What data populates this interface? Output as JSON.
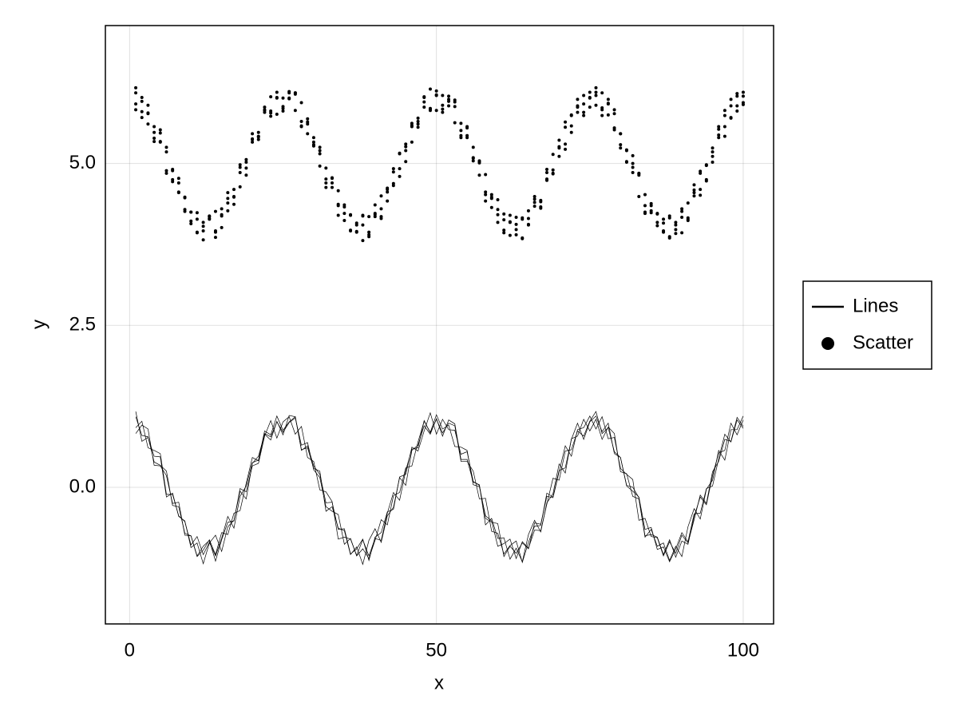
{
  "chart_data": {
    "type": "line",
    "xlabel": "x",
    "ylabel": "y",
    "xlim": [
      -3.95,
      104.95
    ],
    "ylim": [
      -2.11,
      7.13
    ],
    "xticks": [
      0,
      50,
      100
    ],
    "yticks": [
      {
        "value": 0,
        "label": "0.0"
      },
      {
        "value": 2.5,
        "label": "2.5"
      },
      {
        "value": 5,
        "label": "5.0"
      }
    ],
    "grid": true,
    "legend": "right",
    "x": [
      1,
      2,
      3,
      4,
      5,
      6,
      7,
      8,
      9,
      10,
      11,
      12,
      13,
      14,
      15,
      16,
      17,
      18,
      19,
      20,
      21,
      22,
      23,
      24,
      25,
      26,
      27,
      28,
      29,
      30,
      31,
      32,
      33,
      34,
      35,
      36,
      37,
      38,
      39,
      40,
      41,
      42,
      43,
      44,
      45,
      46,
      47,
      48,
      49,
      50,
      51,
      52,
      53,
      54,
      55,
      56,
      57,
      58,
      59,
      60,
      61,
      62,
      63,
      64,
      65,
      66,
      67,
      68,
      69,
      70,
      71,
      72,
      73,
      74,
      75,
      76,
      77,
      78,
      79,
      80,
      81,
      82,
      83,
      84,
      85,
      86,
      87,
      88,
      89,
      90,
      91,
      92,
      93,
      94,
      95,
      96,
      97,
      98,
      99,
      100
    ],
    "series": [
      {
        "name": "Lines",
        "type": "line",
        "color": "#000000",
        "values": [
          [
            1.09,
            0.8,
            0.78,
            0.39,
            0.34,
            0.25,
            -0.28,
            -0.3,
            -0.71,
            -0.75,
            -1.07,
            -0.97,
            -0.81,
            -1.04,
            -0.7,
            -0.73,
            -0.4,
            -0.36,
            0.06,
            0.46,
            0.41,
            0.83,
            0.78,
            1.01,
            0.85,
            1.0,
            1.07,
            0.65,
            0.69,
            0.27,
            0.15,
            -0.3,
            -0.37,
            -0.42,
            -0.88,
            -0.79,
            -1.06,
            -0.95,
            -1.1,
            -0.82,
            -0.5,
            -0.58,
            -0.13,
            -0.08,
            0.3,
            0.33,
            0.7,
            1.02,
            0.85,
            1.12,
            0.9,
            0.96,
            0.63,
            0.62,
            0.57,
            0.04,
            0.01,
            -0.44,
            -0.52,
            -0.91,
            -0.87,
            -0.8,
            -1.1,
            -0.84,
            -0.94,
            -0.66,
            -0.67,
            -0.26,
            0.14,
            0.11,
            0.56,
            0.58,
            0.87,
            0.79,
            1.02,
            1.17,
            0.83,
            0.92,
            0.55,
            0.46,
            0.02,
            -0.06,
            -0.15,
            -0.65,
            -0.62,
            -0.96,
            -0.92,
            -1.15,
            -0.95,
            -0.7,
            -0.84,
            -0.41,
            -0.4,
            -0.02,
            0.02,
            0.44,
            0.82,
            0.7,
            1.04,
            0.91
          ],
          [
            0.92,
            1.02,
            0.61,
            0.57,
            0.52,
            -0.11,
            -0.11,
            -0.44,
            -0.53,
            -0.89,
            -0.76,
            -1.04,
            -0.85,
            -1.06,
            -0.79,
            -0.45,
            -0.63,
            -0.14,
            0.02,
            0.38,
            0.42,
            0.87,
            0.81,
            1.1,
            0.88,
            1.01,
            1.09,
            0.57,
            0.64,
            0.33,
            0.2,
            -0.24,
            -0.23,
            -0.65,
            -0.64,
            -1.03,
            -0.95,
            -0.8,
            -1.13,
            -0.77,
            -0.7,
            -0.38,
            -0.34,
            0.16,
            0.2,
            0.62,
            0.56,
            0.87,
            1.15,
            0.82,
            1.05,
            0.89,
            0.88,
            0.51,
            0.55,
            0.09,
            0.03,
            -0.48,
            -0.54,
            -0.56,
            -1.07,
            -0.91,
            -1.02,
            -0.86,
            -0.95,
            -0.55,
            -0.57,
            -0.14,
            -0.16,
            0.24,
            0.64,
            0.48,
            0.89,
            0.92,
            1.1,
            0.9,
            1.09,
            0.75,
            0.77,
            0.29,
            0.2,
            0.12,
            -0.51,
            -0.48,
            -0.76,
            -0.78,
            -1.06,
            -0.84,
            -1.02,
            -0.74,
            -0.86,
            -0.5,
            -0.12,
            -0.25,
            0.24,
            0.4,
            0.74,
            0.71,
            1.08,
            0.94
          ],
          [
            1.17,
            0.71,
            0.77,
            0.48,
            0.47,
            -0.15,
            -0.09,
            -0.45,
            -0.52,
            -0.93,
            -0.86,
            -1.18,
            -0.86,
            -0.74,
            -0.99,
            -0.61,
            -0.51,
            -0.06,
            -0.18,
            0.37,
            0.48,
            0.82,
            0.73,
            1.02,
            0.81,
            1.11,
            1.09,
            0.58,
            0.61,
            0.29,
            0.25,
            -0.37,
            -0.3,
            -0.63,
            -0.67,
            -1.04,
            -0.92,
            -1.19,
            -0.82,
            -0.64,
            -0.85,
            -0.44,
            -0.31,
            0.15,
            0.03,
            0.57,
            0.65,
            0.95,
            0.82,
            1.06,
            0.79,
            1.04,
            0.98,
            0.43,
            0.43,
            0.08,
            0.04,
            -0.58,
            -0.48,
            -0.79,
            -0.78,
            -1.11,
            -0.94,
            -1.15,
            -0.73,
            -0.51,
            -0.69,
            -0.24,
            -0.1,
            0.36,
            0.22,
            0.75,
            0.79,
            1.05,
            0.87,
            1.05,
            0.74,
            0.93,
            0.83,
            0.24,
            0.21,
            -0.14,
            -0.18,
            -0.77,
            -0.65,
            -0.91,
            -0.86,
            -1.13,
            -0.91,
            -1.07,
            -0.61,
            -0.33,
            -0.49,
            -0.03,
            0.11,
            0.57,
            0.42,
            0.89,
            0.89,
            1.1
          ],
          [
            0.83,
            0.96,
            0.9,
            0.34,
            0.33,
            0.18,
            -0.25,
            -0.23,
            -0.74,
            -0.75,
            -1.06,
            -0.91,
            -0.82,
            -1.14,
            -0.81,
            -0.54,
            -0.52,
            -0.02,
            -0.07,
            0.33,
            0.37,
            0.79,
            1.03,
            0.76,
            1.01,
            1.09,
            0.82,
            0.94,
            0.46,
            0.4,
            -0.04,
            -0.07,
            -0.22,
            -0.8,
            -0.77,
            -0.8,
            -1.05,
            -0.81,
            -1.06,
            -0.79,
            -0.82,
            -0.4,
            -0.08,
            -0.2,
            0.26,
            0.59,
            0.61,
            1.03,
            0.84,
            1.05,
            0.84,
            0.99,
            0.95,
            0.4,
            0.4,
            0.25,
            -0.18,
            -0.17,
            -0.68,
            -0.71,
            -1.03,
            -0.9,
            -0.83,
            -1.16,
            -0.85,
            -0.6,
            -0.59,
            -0.09,
            -0.15,
            0.26,
            0.3,
            0.74,
            0.99,
            0.74,
            1.01,
            1.1,
            0.86,
            0.99,
            0.52,
            0.46,
            0.03,
            0.0,
            -0.16,
            -0.75,
            -0.73,
            -0.77,
            -1.04,
            -0.81,
            -1.08,
            -0.83,
            -0.88,
            -0.45,
            -0.15,
            -0.27,
            0.18,
            0.53,
            0.57,
            0.99,
            0.81,
            1.04
          ]
        ]
      },
      {
        "name": "Scatter",
        "type": "scatter",
        "color": "#000000",
        "values": [
          [
            5.92,
            6.02,
            5.61,
            5.57,
            5.52,
            4.89,
            4.89,
            4.56,
            4.47,
            4.11,
            4.24,
            3.96,
            4.15,
            3.94,
            4.21,
            4.55,
            4.37,
            4.86,
            5.02,
            5.38,
            5.42,
            5.87,
            5.81,
            6.1,
            5.88,
            6.01,
            6.09,
            5.57,
            5.64,
            5.33,
            5.2,
            4.76,
            4.77,
            4.35,
            4.36,
            3.97,
            4.05,
            4.2,
            3.87,
            4.23,
            4.3,
            4.62,
            4.66,
            5.16,
            5.2,
            5.62,
            5.56,
            5.87,
            6.15,
            5.82,
            6.05,
            5.89,
            5.88,
            5.51,
            5.55,
            5.09,
            5.03,
            4.52,
            4.46,
            4.44,
            3.93,
            4.09,
            3.98,
            4.14,
            4.05,
            4.45,
            4.43,
            4.86,
            4.84,
            5.24,
            5.64,
            5.48,
            5.89,
            5.92,
            6.1,
            5.9,
            6.09,
            5.75,
            5.77,
            5.29,
            5.2,
            5.12,
            4.49,
            4.52,
            4.24,
            4.22,
            3.94,
            4.16,
            3.98,
            4.26,
            4.14,
            4.5,
            4.88,
            4.75,
            5.24,
            5.4,
            5.74,
            5.71,
            6.08,
            5.94
          ],
          [
            6.17,
            5.71,
            5.77,
            5.48,
            5.47,
            4.85,
            4.91,
            4.55,
            4.48,
            4.07,
            4.14,
            3.82,
            4.14,
            4.26,
            4.01,
            4.39,
            4.49,
            4.94,
            4.82,
            5.37,
            5.48,
            5.82,
            5.73,
            6.02,
            5.81,
            6.11,
            6.09,
            5.58,
            5.61,
            5.29,
            5.25,
            4.63,
            4.7,
            4.37,
            4.33,
            3.96,
            4.08,
            3.81,
            4.18,
            4.36,
            4.15,
            4.56,
            4.69,
            5.15,
            5.03,
            5.57,
            5.65,
            5.95,
            5.82,
            6.06,
            5.79,
            6.04,
            5.98,
            5.43,
            5.43,
            5.08,
            5.04,
            4.42,
            4.52,
            4.21,
            4.22,
            3.89,
            4.06,
            3.85,
            4.27,
            4.49,
            4.31,
            4.76,
            4.9,
            5.36,
            5.22,
            5.75,
            5.79,
            6.05,
            5.87,
            6.05,
            5.74,
            5.93,
            5.83,
            5.24,
            5.21,
            4.86,
            4.82,
            4.23,
            4.35,
            4.09,
            4.14,
            3.87,
            4.09,
            3.93,
            4.39,
            4.67,
            4.51,
            4.97,
            5.11,
            5.57,
            5.42,
            5.89,
            5.89,
            6.1
          ],
          [
            5.83,
            5.96,
            5.9,
            5.34,
            5.33,
            5.18,
            4.75,
            4.77,
            4.26,
            4.25,
            3.94,
            4.09,
            4.18,
            3.86,
            4.19,
            4.46,
            4.48,
            4.98,
            4.93,
            5.33,
            5.37,
            5.79,
            6.03,
            5.76,
            6.01,
            6.09,
            5.82,
            5.94,
            5.46,
            5.4,
            4.96,
            4.93,
            4.78,
            4.2,
            4.23,
            4.2,
            3.95,
            4.19,
            3.94,
            4.21,
            4.18,
            4.6,
            4.92,
            4.8,
            5.26,
            5.59,
            5.61,
            6.03,
            5.84,
            6.05,
            5.84,
            5.99,
            5.95,
            5.4,
            5.4,
            5.25,
            4.82,
            4.83,
            4.32,
            4.29,
            3.97,
            4.1,
            4.17,
            3.84,
            4.15,
            4.4,
            4.41,
            4.91,
            4.85,
            5.26,
            5.3,
            5.74,
            5.99,
            5.74,
            6.01,
            6.1,
            5.86,
            5.99,
            5.52,
            5.46,
            5.03,
            5.0,
            4.84,
            4.25,
            4.27,
            4.23,
            3.96,
            4.19,
            3.92,
            4.17,
            4.12,
            4.55,
            4.85,
            4.73,
            5.18,
            5.53,
            5.57,
            5.99,
            5.81,
            6.04
          ],
          [
            6.09,
            5.8,
            5.78,
            5.39,
            5.34,
            5.25,
            4.72,
            4.7,
            4.29,
            4.25,
            3.93,
            4.03,
            4.19,
            3.96,
            4.3,
            4.27,
            4.6,
            4.64,
            5.06,
            5.46,
            5.41,
            5.83,
            5.78,
            6.01,
            5.85,
            6.0,
            6.07,
            5.65,
            5.69,
            5.27,
            5.15,
            4.7,
            4.63,
            4.58,
            4.12,
            4.21,
            3.94,
            4.05,
            3.9,
            4.18,
            4.5,
            4.42,
            4.87,
            4.92,
            5.3,
            5.33,
            5.7,
            6.02,
            5.85,
            6.12,
            5.9,
            5.96,
            5.63,
            5.62,
            5.57,
            5.04,
            5.01,
            4.56,
            4.48,
            4.09,
            4.13,
            4.2,
            3.9,
            4.16,
            4.06,
            4.34,
            4.33,
            4.74,
            5.14,
            5.11,
            5.56,
            5.58,
            5.87,
            5.79,
            6.02,
            6.17,
            5.83,
            5.92,
            5.55,
            5.46,
            5.02,
            4.94,
            4.85,
            4.35,
            4.38,
            4.04,
            4.08,
            3.85,
            4.05,
            4.3,
            4.16,
            4.59,
            4.6,
            4.98,
            5.02,
            5.44,
            5.82,
            5.7,
            6.04,
            5.91
          ]
        ]
      }
    ]
  }
}
